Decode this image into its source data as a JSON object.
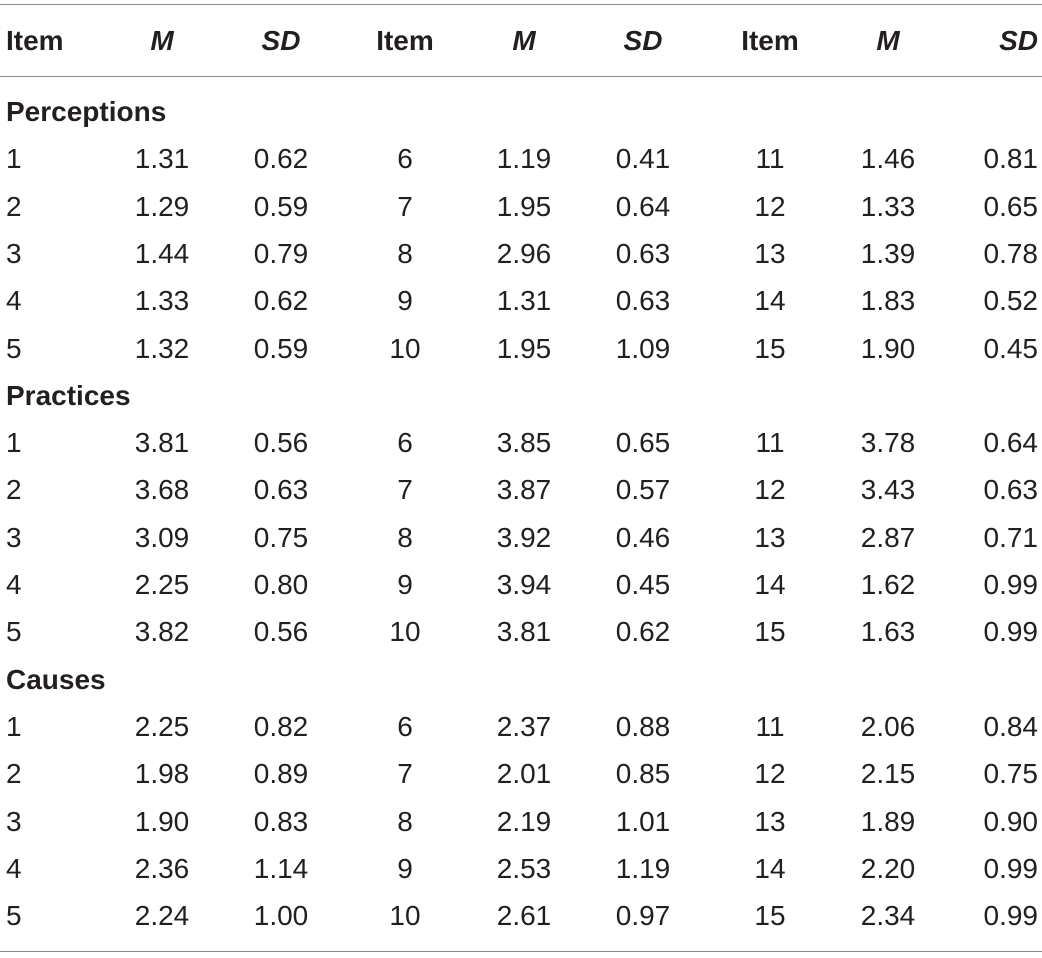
{
  "header": {
    "item1": "Item",
    "m1": "M",
    "sd1": "SD",
    "item2": "Item",
    "m2": "M",
    "sd2": "SD",
    "item3": "Item",
    "m3": "M",
    "sd3": "SD"
  },
  "sections": [
    {
      "title": "Perceptions",
      "rows": [
        [
          "1",
          "1.31",
          "0.62",
          "6",
          "1.19",
          "0.41",
          "11",
          "1.46",
          "0.81"
        ],
        [
          "2",
          "1.29",
          "0.59",
          "7",
          "1.95",
          "0.64",
          "12",
          "1.33",
          "0.65"
        ],
        [
          "3",
          "1.44",
          "0.79",
          "8",
          "2.96",
          "0.63",
          "13",
          "1.39",
          "0.78"
        ],
        [
          "4",
          "1.33",
          "0.62",
          "9",
          "1.31",
          "0.63",
          "14",
          "1.83",
          "0.52"
        ],
        [
          "5",
          "1.32",
          "0.59",
          "10",
          "1.95",
          "1.09",
          "15",
          "1.90",
          "0.45"
        ]
      ]
    },
    {
      "title": "Practices",
      "rows": [
        [
          "1",
          "3.81",
          "0.56",
          "6",
          "3.85",
          "0.65",
          "11",
          "3.78",
          "0.64"
        ],
        [
          "2",
          "3.68",
          "0.63",
          "7",
          "3.87",
          "0.57",
          "12",
          "3.43",
          "0.63"
        ],
        [
          "3",
          "3.09",
          "0.75",
          "8",
          "3.92",
          "0.46",
          "13",
          "2.87",
          "0.71"
        ],
        [
          "4",
          "2.25",
          "0.80",
          "9",
          "3.94",
          "0.45",
          "14",
          "1.62",
          "0.99"
        ],
        [
          "5",
          "3.82",
          "0.56",
          "10",
          "3.81",
          "0.62",
          "15",
          "1.63",
          "0.99"
        ]
      ]
    },
    {
      "title": "Causes",
      "rows": [
        [
          "1",
          "2.25",
          "0.82",
          "6",
          "2.37",
          "0.88",
          "11",
          "2.06",
          "0.84"
        ],
        [
          "2",
          "1.98",
          "0.89",
          "7",
          "2.01",
          "0.85",
          "12",
          "2.15",
          "0.75"
        ],
        [
          "3",
          "1.90",
          "0.83",
          "8",
          "2.19",
          "1.01",
          "13",
          "1.89",
          "0.90"
        ],
        [
          "4",
          "2.36",
          "1.14",
          "9",
          "2.53",
          "1.19",
          "14",
          "2.20",
          "0.99"
        ],
        [
          "5",
          "2.24",
          "1.00",
          "10",
          "2.61",
          "0.97",
          "15",
          "2.34",
          "0.99"
        ]
      ]
    }
  ]
}
